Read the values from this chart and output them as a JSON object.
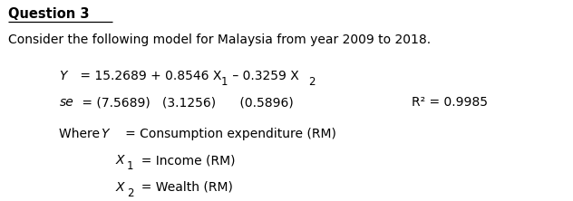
{
  "title": "Question 3",
  "line1": "Consider the following model for Malaysia from year 2009 to 2018.",
  "eq_line1_italic": "Y",
  "eq_line1_rest": " = 15.2689 + 0.8546 X",
  "eq_line1_sub1": "1",
  "eq_line1_mid": " – 0.3259 X",
  "eq_line1_sub2": "2",
  "se_italic": "se",
  "se_rest": " = (7.5689)   (3.1256)      (0.5896)",
  "r2_text": "R² = 0.9985",
  "where_label": "Where ",
  "where_Y_italic": "Y",
  "where_Y_rest": "   = Consumption expenditure (RM)",
  "where_X1_italic": "X",
  "where_X1_sub": "1",
  "where_X1_rest": "  = Income (RM)",
  "where_X2_italic": "X",
  "where_X2_sub": "2",
  "where_X2_rest": "  = Wealth (RM)",
  "bg_color": "#ffffff",
  "text_color": "#000000",
  "font_size_title": 10.5,
  "font_size_body": 10,
  "font_size_eq": 10
}
